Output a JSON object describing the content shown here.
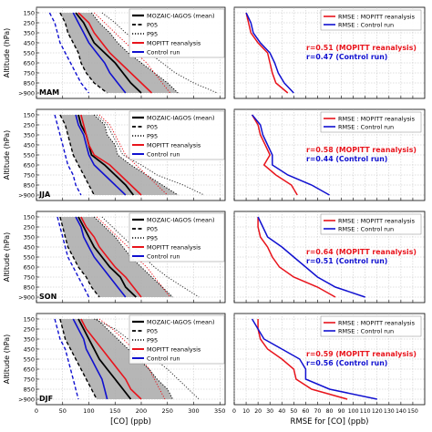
{
  "figure": {
    "y_label": "Altitude (hPa)",
    "left_x_label": "[CO] (ppb)",
    "right_x_label": "RMSE for [CO] (ppb)",
    "y_levels": [
      "150",
      "250",
      "350",
      "450",
      "550",
      "650",
      "750",
      "850",
      ">900"
    ],
    "left_x_ticks": [
      0,
      50,
      100,
      150,
      200,
      250,
      300,
      350
    ],
    "right_x_ticks": [
      0,
      10,
      20,
      30,
      40,
      50,
      60,
      70,
      80,
      90,
      100,
      110,
      120,
      130,
      140,
      150
    ],
    "left_legend": [
      "MOZAIC-IAGOS (mean)",
      "P05",
      "P95",
      "MOPITT reanalysis",
      "Control run"
    ],
    "right_legend": [
      "RMSE : MOPITT reanalysis",
      "RMSE : Control run"
    ],
    "colors": {
      "mozaic": "#000000",
      "reanalysis": "#e8141c",
      "control": "#1010d0",
      "envelope": "#a9a9a9",
      "grid": "#b0b0b0"
    }
  },
  "chart_data": [
    {
      "type": "line",
      "season": "MAM",
      "xlim": [
        0,
        360
      ],
      "y": [
        "150",
        "250",
        "350",
        "450",
        "550",
        "650",
        "750",
        "850",
        ">900"
      ],
      "series": [
        {
          "name": "MOZAIC-IAGOS (mean)",
          "values": [
            75,
            90,
            100,
            110,
            130,
            150,
            165,
            180,
            200
          ]
        },
        {
          "name": "P05",
          "values": [
            45,
            55,
            60,
            70,
            80,
            85,
            95,
            110,
            135
          ]
        },
        {
          "name": "P95",
          "values": [
            105,
            120,
            140,
            155,
            175,
            200,
            225,
            250,
            270
          ]
        },
        {
          "name": "MOPITT reanalysis",
          "values": [
            80,
            100,
            110,
            125,
            140,
            160,
            180,
            200,
            220
          ]
        },
        {
          "name": "Control run",
          "values": [
            70,
            80,
            90,
            100,
            115,
            130,
            140,
            155,
            170
          ]
        },
        {
          "name": "P05 (dashed blue)",
          "values": [
            25,
            35,
            40,
            45,
            55,
            65,
            75,
            85,
            100
          ]
        },
        {
          "name": "P95 (dotted red)",
          "values": [
            110,
            130,
            150,
            170,
            190,
            210,
            225,
            240,
            255
          ]
        },
        {
          "name": "P95 (dotted dark)",
          "values": [
            125,
            150,
            170,
            195,
            215,
            240,
            265,
            300,
            345
          ]
        }
      ],
      "rmse": {
        "annotation_reanalysis": "r=0.51 (MOPITT reanalysis)",
        "annotation_control": "r=0.47 (Control run)",
        "series": [
          {
            "name": "RMSE : MOPITT reanalysis",
            "values": [
              10,
              12,
              14,
              20,
              28,
              30,
              32,
              35,
              45
            ]
          },
          {
            "name": "RMSE : Control run",
            "values": [
              10,
              14,
              16,
              22,
              30,
              34,
              37,
              42,
              50
            ]
          }
        ]
      }
    },
    {
      "type": "line",
      "season": "JJA",
      "xlim": [
        0,
        360
      ],
      "y": [
        "150",
        "250",
        "350",
        "450",
        "550",
        "650",
        "750",
        "850",
        ">900"
      ],
      "series": [
        {
          "name": "MOZAIC-IAGOS (mean)",
          "values": [
            80,
            85,
            95,
            100,
            105,
            130,
            150,
            170,
            185
          ]
        },
        {
          "name": "P05",
          "values": [
            45,
            55,
            60,
            65,
            70,
            80,
            90,
            100,
            110
          ]
        },
        {
          "name": "P95",
          "values": [
            110,
            130,
            135,
            150,
            155,
            180,
            210,
            240,
            270
          ]
        },
        {
          "name": "MOPITT reanalysis",
          "values": [
            85,
            90,
            95,
            100,
            110,
            140,
            160,
            180,
            200
          ]
        },
        {
          "name": "Control run",
          "values": [
            75,
            80,
            90,
            95,
            100,
            110,
            130,
            150,
            170
          ]
        },
        {
          "name": "P05 (dashed blue)",
          "values": [
            35,
            40,
            45,
            50,
            55,
            60,
            70,
            75,
            85
          ]
        },
        {
          "name": "P95 (dotted red)",
          "values": [
            120,
            140,
            150,
            160,
            170,
            190,
            210,
            230,
            250
          ]
        },
        {
          "name": "P95 (dotted dark)",
          "values": [
            115,
            135,
            145,
            155,
            165,
            200,
            230,
            280,
            320
          ]
        }
      ],
      "rmse": {
        "annotation_reanalysis": "r=0.58 (MOPITT reanalysis)",
        "annotation_control": "r=0.44 (Control run)",
        "series": [
          {
            "name": "RMSE : MOPITT reanalysis",
            "values": [
              15,
              20,
              22,
              26,
              30,
              25,
              35,
              48,
              53
            ]
          },
          {
            "name": "RMSE : Control run",
            "values": [
              15,
              22,
              24,
              28,
              32,
              32,
              45,
              65,
              80
            ]
          }
        ]
      }
    },
    {
      "type": "line",
      "season": "SON",
      "xlim": [
        0,
        360
      ],
      "y": [
        "150",
        "250",
        "350",
        "450",
        "550",
        "650",
        "750",
        "850",
        ">900"
      ],
      "series": [
        {
          "name": "MOZAIC-IAGOS (mean)",
          "values": [
            80,
            90,
            100,
            110,
            125,
            140,
            160,
            170,
            190
          ]
        },
        {
          "name": "P05",
          "values": [
            45,
            50,
            55,
            60,
            70,
            80,
            95,
            105,
            120
          ]
        },
        {
          "name": "P95",
          "values": [
            110,
            130,
            150,
            165,
            180,
            200,
            220,
            240,
            260
          ]
        },
        {
          "name": "MOPITT reanalysis",
          "values": [
            85,
            95,
            110,
            120,
            135,
            150,
            170,
            185,
            200
          ]
        },
        {
          "name": "Control run",
          "values": [
            75,
            85,
            90,
            100,
            110,
            125,
            140,
            155,
            170
          ]
        },
        {
          "name": "P05 (dashed blue)",
          "values": [
            40,
            45,
            50,
            55,
            60,
            70,
            80,
            90,
            100
          ]
        },
        {
          "name": "P95 (dotted red)",
          "values": [
            115,
            135,
            155,
            175,
            190,
            210,
            225,
            240,
            255
          ]
        },
        {
          "name": "P95 (dotted dark)",
          "values": [
            125,
            145,
            165,
            185,
            205,
            225,
            250,
            280,
            310
          ]
        }
      ],
      "rmse": {
        "annotation_reanalysis": "r=0.64 (MOPITT reanalysis)",
        "annotation_control": "r=0.51 (Control run)",
        "series": [
          {
            "name": "RMSE : MOPITT reanalysis",
            "values": [
              20,
              20,
              22,
              28,
              32,
              38,
              50,
              70,
              85
            ]
          },
          {
            "name": "RMSE : Control run",
            "values": [
              20,
              24,
              28,
              40,
              50,
              60,
              70,
              85,
              110
            ]
          }
        ]
      }
    },
    {
      "type": "line",
      "season": "DJF",
      "xlim": [
        0,
        360
      ],
      "y": [
        "150",
        "250",
        "350",
        "450",
        "550",
        "650",
        "750",
        "850",
        ">900"
      ],
      "series": [
        {
          "name": "MOZAIC-IAGOS (mean)",
          "values": [
            80,
            90,
            100,
            110,
            120,
            135,
            150,
            165,
            180
          ]
        },
        {
          "name": "P05",
          "values": [
            45,
            50,
            55,
            65,
            75,
            85,
            95,
            105,
            115
          ]
        },
        {
          "name": "P95",
          "values": [
            115,
            135,
            155,
            175,
            195,
            215,
            230,
            250,
            260
          ]
        },
        {
          "name": "MOPITT reanalysis",
          "values": [
            85,
            95,
            110,
            125,
            140,
            155,
            170,
            180,
            200
          ]
        },
        {
          "name": "Control run",
          "values": [
            70,
            80,
            90,
            95,
            105,
            115,
            125,
            130,
            135
          ]
        },
        {
          "name": "P05 (dashed blue)",
          "values": [
            35,
            40,
            45,
            55,
            60,
            65,
            70,
            75,
            80
          ]
        },
        {
          "name": "P95 (dotted red)",
          "values": [
            120,
            145,
            165,
            185,
            200,
            215,
            225,
            235,
            245
          ]
        },
        {
          "name": "P95 (dotted dark)",
          "values": [
            110,
            150,
            175,
            200,
            225,
            250,
            270,
            290,
            310
          ]
        }
      ],
      "rmse": {
        "annotation_reanalysis": "r=0.59 (MOPITT reanalysis)",
        "annotation_control": "r=0.56 (Control run)",
        "series": [
          {
            "name": "RMSE : MOPITT reanalysis",
            "values": [
              20,
              20,
              22,
              28,
              40,
              50,
              52,
              65,
              95
            ]
          },
          {
            "name": "RMSE : Control run",
            "values": [
              15,
              20,
              25,
              40,
              55,
              60,
              60,
              80,
              120
            ]
          }
        ]
      }
    }
  ]
}
